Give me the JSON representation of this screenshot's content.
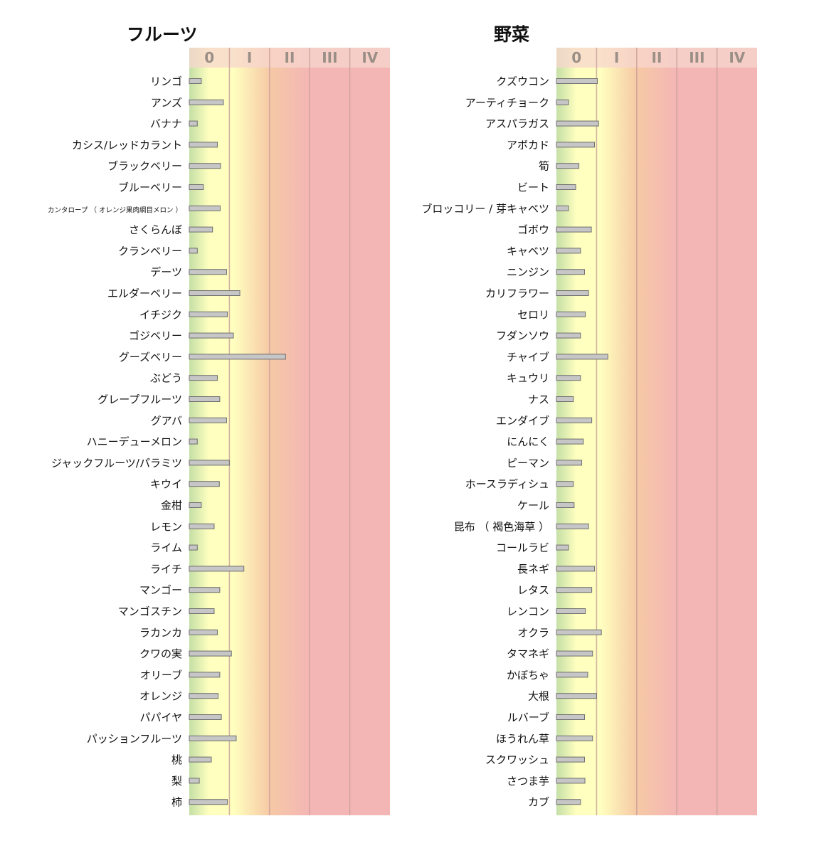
{
  "colors": {
    "zone_green": "#c5dfa6",
    "zone_yellow": "#ffffbf",
    "zone_orange": "#f6c9a5",
    "zone_red": "#f4b6b5",
    "header_band": "#f7d5cf",
    "bar_fill": "#c6c6c6",
    "bar_stroke": "#6f6f6f",
    "zone_divider": "#c9a09a",
    "header_text": "#9a8f86"
  },
  "chart_data": [
    {
      "type": "bar",
      "orientation": "horizontal",
      "title": "フルーツ",
      "axis_ticks": [
        "0",
        "I",
        "II",
        "III",
        "IV"
      ],
      "xlim": [
        -0.5,
        4.5
      ],
      "grid": false,
      "legend": "none",
      "categories": [
        "リンゴ",
        "アンズ",
        "バナナ",
        "カシス/レッドカラント",
        "ブラックベリー",
        "ブルーベリー",
        "カンタロープ （ オレンジ果肉網目メロン ）",
        "さくらんぼ",
        "クランベリー",
        "デーツ",
        "エルダーベリー",
        "イチジク",
        "ゴジベリー",
        "グーズベリー",
        "ぶどう",
        "グレープフルーツ",
        "グアバ",
        "ハニーデューメロン",
        "ジャックフルーツ/パラミツ",
        "キウイ",
        "金柑",
        "レモン",
        "ライム",
        "ライチ",
        "マンゴー",
        "マンゴスチン",
        "ラカンカ",
        "クワの実",
        "オリーブ",
        "オレンジ",
        "パパイヤ",
        "パッションフルーツ",
        "桃",
        "梨",
        "柿"
      ],
      "values": [
        -0.2,
        0.35,
        -0.3,
        0.2,
        0.28,
        -0.15,
        0.27,
        0.08,
        -0.3,
        0.43,
        0.76,
        0.45,
        0.6,
        1.9,
        0.2,
        0.26,
        0.43,
        -0.3,
        0.5,
        0.25,
        -0.2,
        0.12,
        -0.3,
        0.86,
        0.26,
        0.12,
        0.2,
        0.55,
        0.26,
        0.22,
        0.3,
        0.67,
        0.05,
        -0.25,
        0.45
      ]
    },
    {
      "type": "bar",
      "orientation": "horizontal",
      "title": "野菜",
      "axis_ticks": [
        "0",
        "I",
        "II",
        "III",
        "IV"
      ],
      "xlim": [
        -0.5,
        4.5
      ],
      "grid": false,
      "legend": "none",
      "categories": [
        "クズウコン",
        "アーティチョーク",
        "アスパラガス",
        "アボカド",
        "筍",
        "ビート",
        "ブロッコリー / 芽キャベツ",
        "ゴボウ",
        "キャベツ",
        "ニンジン",
        "カリフラワー",
        "セロリ",
        "フダンソウ",
        "チャイブ",
        "キュウリ",
        "ナス",
        "エンダイブ",
        "にんにく",
        "ピーマン",
        "ホースラディシュ",
        "ケール",
        "昆布 （ 褐色海草 ）",
        "コールラビ",
        "長ネギ",
        "レタス",
        "レンコン",
        "オクラ",
        "タマネギ",
        "かぼちゃ",
        "大根",
        "ルバーブ",
        "ほうれん草",
        "スクワッシュ",
        "さつま芋",
        "カブ"
      ],
      "values": [
        0.52,
        -0.2,
        0.55,
        0.45,
        0.06,
        -0.02,
        -0.2,
        0.37,
        0.1,
        0.2,
        0.3,
        0.22,
        0.1,
        0.78,
        0.1,
        -0.08,
        0.38,
        0.17,
        0.13,
        -0.08,
        -0.06,
        0.3,
        -0.2,
        0.45,
        0.38,
        0.22,
        0.62,
        0.4,
        0.28,
        0.5,
        0.2,
        0.4,
        0.2,
        0.21,
        0.1
      ]
    }
  ]
}
